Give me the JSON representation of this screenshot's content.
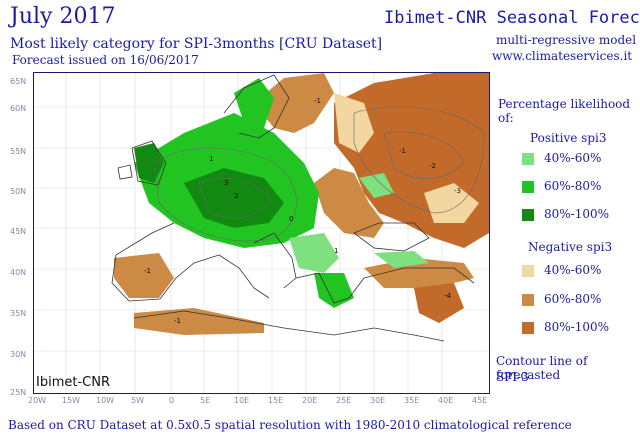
{
  "header": {
    "title": "July 2017",
    "subtitle": "Most likely category for SPI-3months [CRU Dataset]",
    "issued": "Forecast issued on 16/06/2017",
    "right_title": "Ibimet-CNR Seasonal Forecast",
    "model": "multi-regressive model",
    "site": "www.climateservices.it"
  },
  "map": {
    "credit": "Ibimet-CNR",
    "lat_labels": [
      "65N",
      "60N",
      "55N",
      "50N",
      "45N",
      "40N",
      "35N",
      "30N",
      "25N"
    ],
    "lon_labels": [
      "20W",
      "15W",
      "10W",
      "5W",
      "0",
      "5E",
      "10E",
      "15E",
      "20E",
      "25E",
      "30E",
      "35E",
      "40E",
      "45E"
    ],
    "contour_labels": [
      "1",
      "0",
      "-1",
      "-2",
      "2",
      "3",
      "-3",
      "-4"
    ],
    "colors": {
      "pos_40_60": "#7ee07e",
      "pos_60_80": "#22c422",
      "pos_80_100": "#128a12",
      "neg_40_60": "#f2d8a0",
      "neg_60_80": "#cc8a44",
      "neg_80_100": "#c26a2a"
    }
  },
  "legend": {
    "heading": "Percentage likelihood of:",
    "positive_label": "Positive spi3",
    "negative_label": "Negative spi3",
    "positive": [
      {
        "label": "40%-60%",
        "color": "#7ee07e"
      },
      {
        "label": "60%-80%",
        "color": "#22c422"
      },
      {
        "label": "80%-100%",
        "color": "#128a12"
      }
    ],
    "negative": [
      {
        "label": "40%-60%",
        "color": "#f2d8a0"
      },
      {
        "label": "60%-80%",
        "color": "#cc8a44"
      },
      {
        "label": "80%-100%",
        "color": "#c26a2a"
      }
    ],
    "contour_line": "Contour line of forecasted",
    "contour_var": "SPI-3"
  },
  "footer": "Based on CRU Dataset at 0.5x0.5 spatial resolution with 1980-2010 climatological reference"
}
